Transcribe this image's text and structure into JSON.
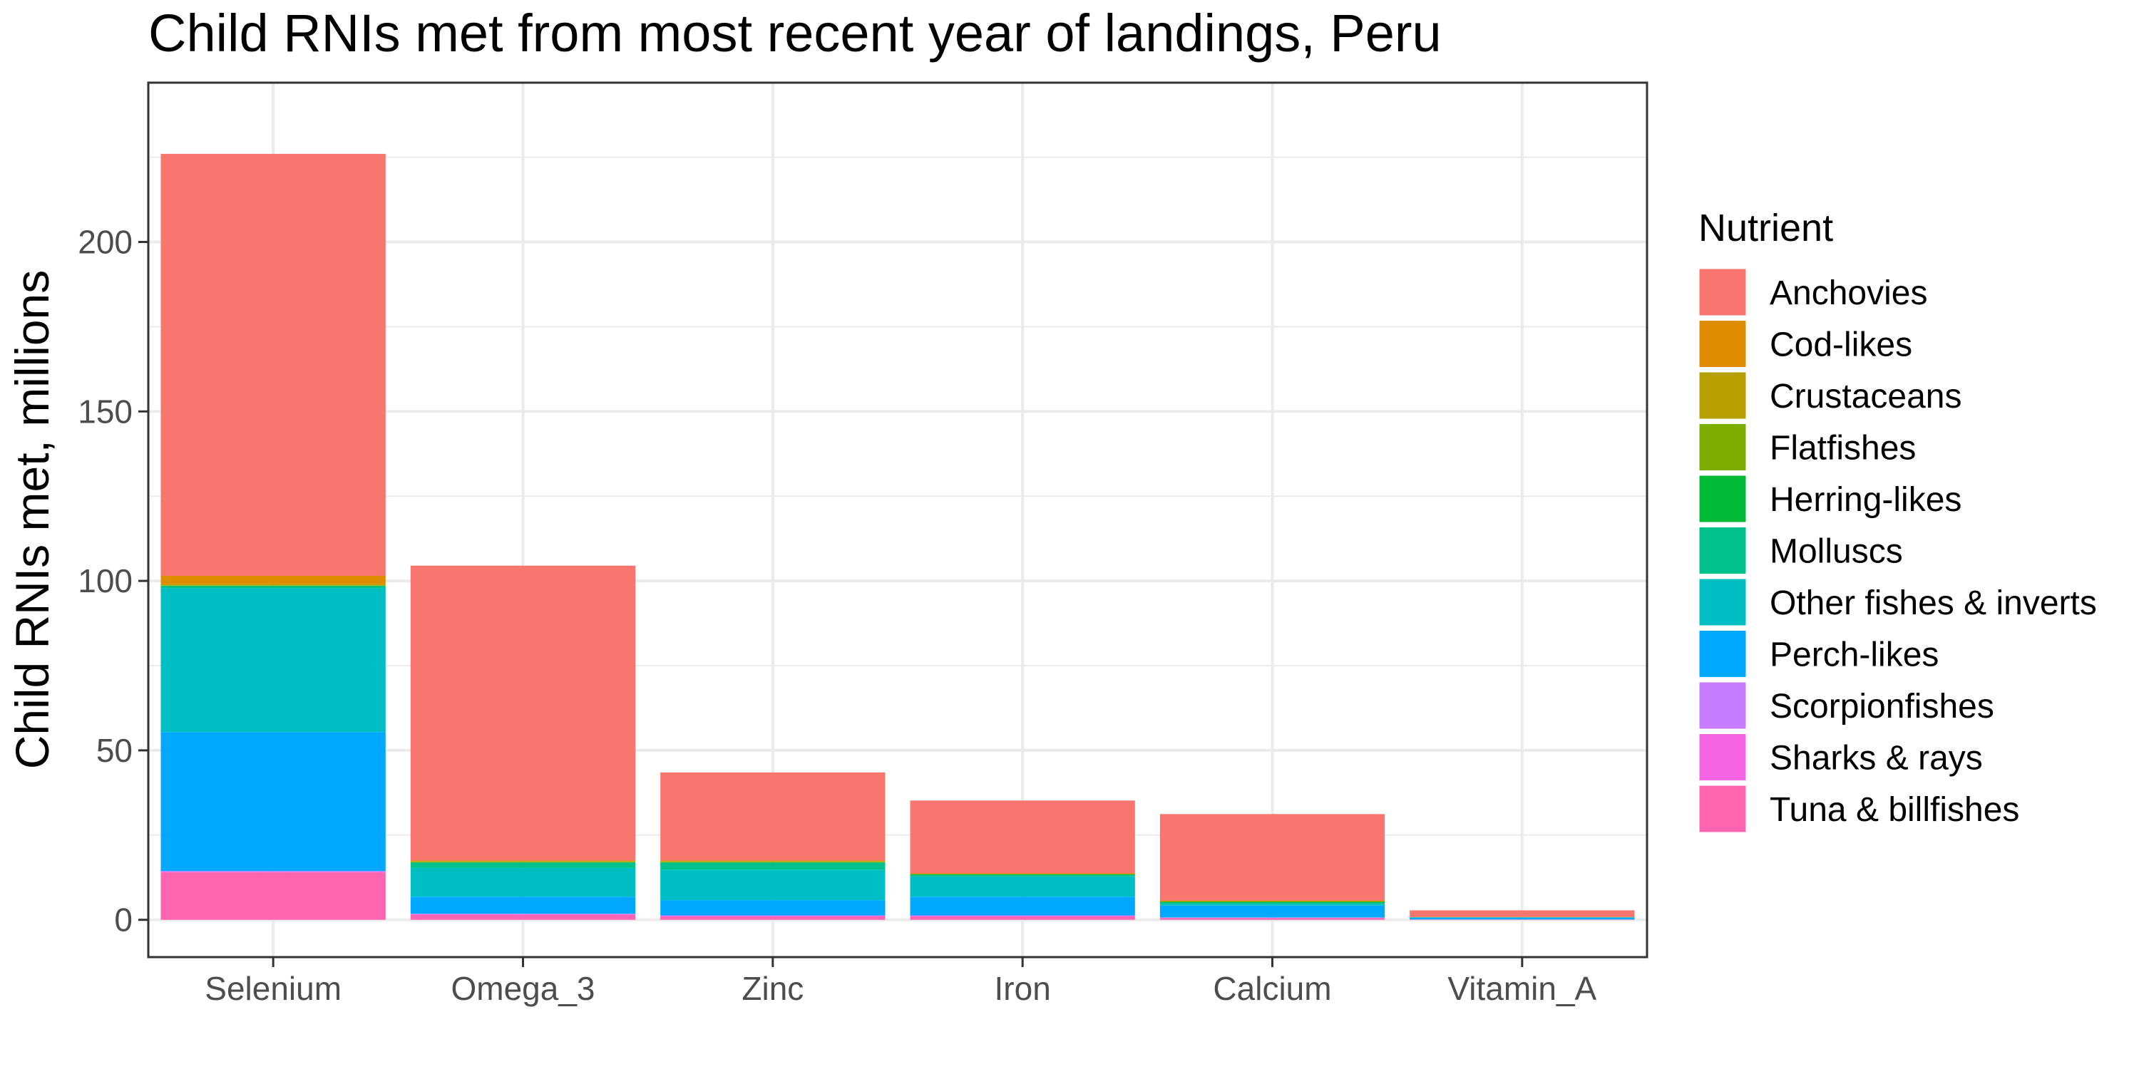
{
  "chart_data": {
    "type": "bar",
    "stacked": true,
    "title": "Child RNIs met from most recent year of landings, Peru",
    "xlabel": "",
    "ylabel": "Child RNIs met, millions",
    "ylim": [
      -11,
      247
    ],
    "yticks": [
      0,
      50,
      100,
      150,
      200
    ],
    "grid": true,
    "legend_position": "right",
    "legend_title": "Nutrient",
    "categories": [
      "Selenium",
      "Omega_3",
      "Zinc",
      "Iron",
      "Calcium",
      "Vitamin_A"
    ],
    "series": [
      {
        "name": "Anchovies",
        "color": "#F8766D",
        "values": [
          124.5,
          87.0,
          26.0,
          21.5,
          25.5,
          2.0
        ]
      },
      {
        "name": "Cod-likes",
        "color": "#DE8C00",
        "values": [
          2.5,
          0.2,
          0.2,
          0.1,
          0.2,
          0.0
        ]
      },
      {
        "name": "Crustaceans",
        "color": "#B79F00",
        "values": [
          0.3,
          0.2,
          0.2,
          0.1,
          0.1,
          0.0
        ]
      },
      {
        "name": "Flatfishes",
        "color": "#7CAE00",
        "values": [
          0.1,
          0.1,
          0.1,
          0.1,
          0.1,
          0.0
        ]
      },
      {
        "name": "Herring-likes",
        "color": "#00BA38",
        "values": [
          0.2,
          0.2,
          0.2,
          0.1,
          0.1,
          0.0
        ]
      },
      {
        "name": "Molluscs",
        "color": "#00C08B",
        "values": [
          0.5,
          1.5,
          2.0,
          0.5,
          0.5,
          0.1
        ]
      },
      {
        "name": "Other fishes & inverts",
        "color": "#00BFC4",
        "values": [
          42.5,
          8.5,
          9.0,
          6.0,
          0.5,
          0.1
        ]
      },
      {
        "name": "Perch-likes",
        "color": "#00A9FF",
        "values": [
          41.0,
          5.0,
          4.5,
          5.5,
          3.5,
          0.5
        ]
      },
      {
        "name": "Scorpionfishes",
        "color": "#C77CFF",
        "values": [
          0.2,
          0.1,
          0.1,
          0.1,
          0.1,
          0.0
        ]
      },
      {
        "name": "Sharks & rays",
        "color": "#F564E3",
        "values": [
          0.2,
          0.2,
          0.2,
          0.2,
          0.1,
          0.0
        ]
      },
      {
        "name": "Tuna & billfishes",
        "color": "#FF64B0",
        "values": [
          14.0,
          1.5,
          1.0,
          1.0,
          0.5,
          0.1
        ]
      }
    ]
  }
}
